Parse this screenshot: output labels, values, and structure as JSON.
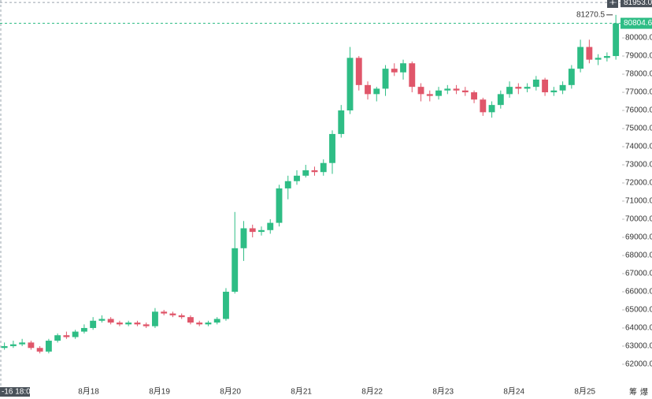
{
  "chart_data": {
    "type": "candlestick",
    "open": [
      62900,
      63000,
      63100,
      63200,
      62900,
      62700,
      63300,
      63600,
      63500,
      63800,
      64000,
      64400,
      64500,
      64300,
      64200,
      64300,
      64200,
      64100,
      64900,
      64800,
      64700,
      64600,
      64300,
      64200,
      64300,
      64500,
      66000,
      68400,
      69500,
      69300,
      69400,
      69800,
      71700,
      72100,
      72400,
      72700,
      72600,
      73100,
      74700,
      76000,
      78900,
      77400,
      76900,
      77200,
      78300,
      78100,
      78600,
      77300,
      76900,
      76800,
      77100,
      77200,
      77100,
      77000,
      76600,
      75900,
      76300,
      76900,
      77300,
      77200,
      77300,
      77700,
      77000,
      77100,
      77400,
      78300,
      79500,
      78800,
      78900,
      79000
    ],
    "high": [
      63200,
      63300,
      63400,
      63300,
      63000,
      63400,
      63700,
      63800,
      63900,
      64200,
      64600,
      64700,
      64600,
      64400,
      64400,
      64400,
      64300,
      65100,
      65000,
      64900,
      64800,
      64700,
      64400,
      64400,
      64600,
      66200,
      70400,
      69900,
      69700,
      69600,
      70000,
      71900,
      72400,
      72700,
      73000,
      72900,
      73300,
      74900,
      76300,
      79500,
      79000,
      77600,
      77300,
      78500,
      78600,
      78800,
      78700,
      77500,
      77100,
      77300,
      77400,
      77400,
      77300,
      77100,
      76700,
      76500,
      77100,
      77600,
      77500,
      77500,
      77900,
      77800,
      77300,
      77600,
      78500,
      79900,
      79900,
      79100,
      79200,
      81270.5
    ],
    "low": [
      62800,
      62900,
      63000,
      62800,
      62600,
      62600,
      63200,
      63400,
      63400,
      63700,
      63900,
      64300,
      64200,
      64100,
      64100,
      64100,
      64000,
      64000,
      64700,
      64600,
      64500,
      64200,
      64100,
      64100,
      64200,
      64400,
      65900,
      67700,
      69000,
      69100,
      69200,
      69600,
      71100,
      71900,
      72300,
      72400,
      72400,
      72500,
      74500,
      75800,
      77100,
      76600,
      76500,
      76800,
      77900,
      77700,
      77000,
      76500,
      76500,
      76600,
      76900,
      76900,
      76800,
      76400,
      75700,
      75600,
      76100,
      76700,
      76900,
      77000,
      77100,
      76800,
      76800,
      76900,
      77200,
      78100,
      78600,
      78500,
      78700,
      78800
    ],
    "close": [
      63000,
      63100,
      63200,
      62900,
      62700,
      63300,
      63600,
      63500,
      63800,
      64000,
      64400,
      64500,
      64300,
      64200,
      64300,
      64200,
      64100,
      64900,
      64800,
      64700,
      64600,
      64300,
      64200,
      64300,
      64500,
      66000,
      68400,
      69500,
      69300,
      69400,
      69800,
      71700,
      72100,
      72400,
      72700,
      72600,
      73100,
      74700,
      76000,
      78900,
      77400,
      76900,
      77200,
      78300,
      78100,
      78600,
      77300,
      76900,
      76800,
      77100,
      77200,
      77100,
      77000,
      76600,
      75900,
      76300,
      76900,
      77300,
      77200,
      77300,
      77700,
      77000,
      77100,
      77400,
      78300,
      79500,
      78800,
      78900,
      79000,
      80804.6
    ],
    "up_color": "#2ebd85",
    "down_color": "#e0566a",
    "xlim": [
      -0.5,
      69.7
    ],
    "xticks": [
      {
        "value": 9.5,
        "label": "8月18"
      },
      {
        "value": 17.5,
        "label": "8月19"
      },
      {
        "value": 25.5,
        "label": "8月20"
      },
      {
        "value": 33.5,
        "label": "8月21"
      },
      {
        "value": 41.5,
        "label": "8月22"
      },
      {
        "value": 49.5,
        "label": "8月23"
      },
      {
        "value": 57.5,
        "label": "8月24"
      },
      {
        "value": 65.5,
        "label": "8月25"
      }
    ],
    "ylim": [
      60780,
      82090
    ],
    "yticks": [
      {
        "value": 62000,
        "label": "62000.0"
      },
      {
        "value": 63000,
        "label": "63000.0"
      },
      {
        "value": 64000,
        "label": "64000.0"
      },
      {
        "value": 65000,
        "label": "65000.0"
      },
      {
        "value": 66000,
        "label": "66000.0"
      },
      {
        "value": 67000,
        "label": "67000.0"
      },
      {
        "value": 68000,
        "label": "68000.0"
      },
      {
        "value": 69000,
        "label": "69000.0"
      },
      {
        "value": 70000,
        "label": "70000.0"
      },
      {
        "value": 71000,
        "label": "71000.0"
      },
      {
        "value": 72000,
        "label": "72000.0"
      },
      {
        "value": 73000,
        "label": "73000.0"
      },
      {
        "value": 74000,
        "label": "74000.0"
      },
      {
        "value": 75000,
        "label": "75000.0"
      },
      {
        "value": 76000,
        "label": "76000.0"
      },
      {
        "value": 77000,
        "label": "77000.0"
      },
      {
        "value": 78000,
        "label": "78000.0"
      },
      {
        "value": 79000,
        "label": "79000.0"
      },
      {
        "value": 80000,
        "label": "80000.0"
      }
    ],
    "grid": false,
    "crosshair_price": {
      "value": 81953,
      "label": "81953.0"
    },
    "crosshair_time": "-16 18:00",
    "last_price": {
      "value": 80804.6,
      "label": "80804.6"
    },
    "high_marker": 81270.5,
    "tools": [
      "筹",
      "爆"
    ]
  }
}
